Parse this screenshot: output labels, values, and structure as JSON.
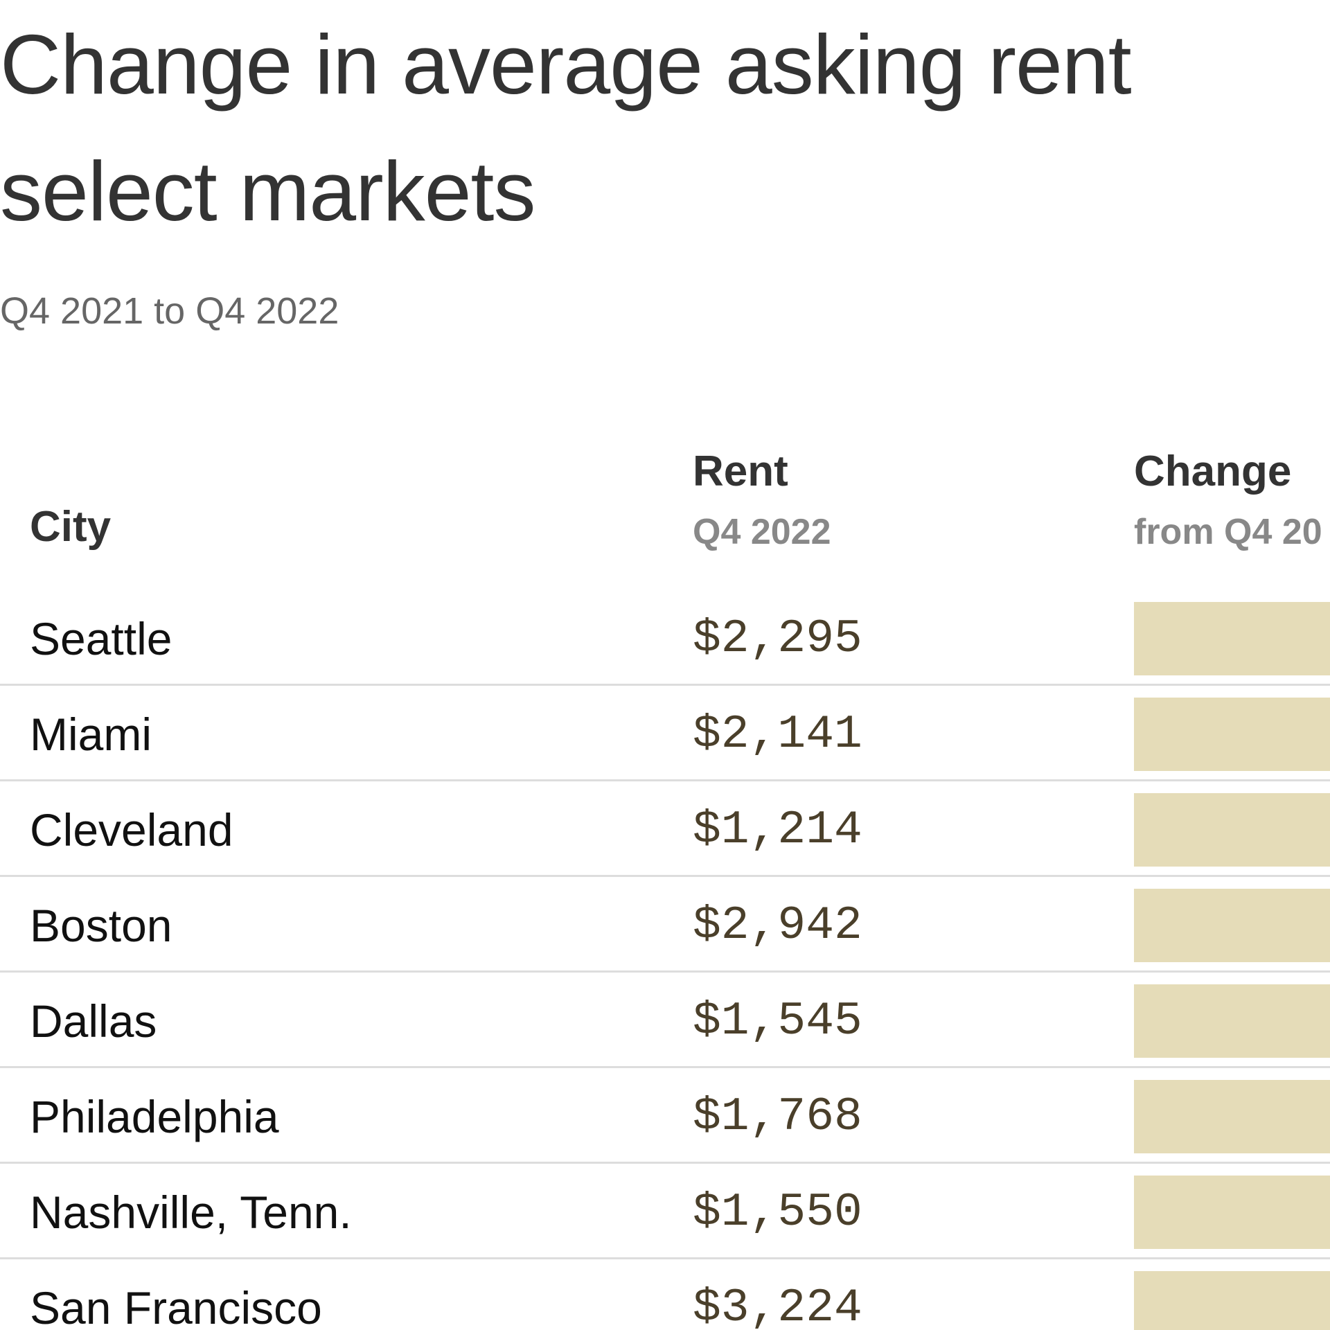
{
  "header": {
    "title_lines": [
      "Change in average asking rent",
      "select markets"
    ],
    "subtitle": "Q4 2021 to Q4 2022"
  },
  "table": {
    "columns": [
      {
        "label": "City"
      },
      {
        "label": "Rent",
        "sublabel": "Q4 2022"
      },
      {
        "label": "Change",
        "sublabel": "from Q4 20"
      }
    ],
    "rows": [
      [
        "Seattle",
        "$2,295"
      ],
      [
        "Miami",
        "$2,141"
      ],
      [
        "Cleveland",
        "$1,214"
      ],
      [
        "Boston",
        "$2,942"
      ],
      [
        "Dallas",
        "$1,545"
      ],
      [
        "Philadelphia",
        "$1,768"
      ],
      [
        "Nashville, Tenn.",
        "$1,550"
      ],
      [
        "San Francisco",
        "$3,224"
      ]
    ]
  }
}
